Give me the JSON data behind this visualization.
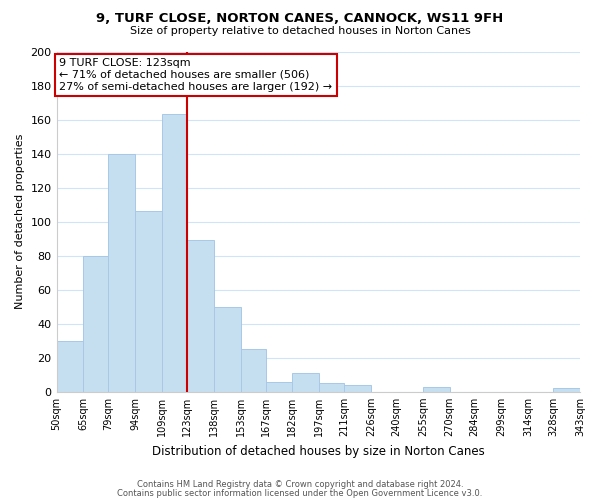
{
  "title": "9, TURF CLOSE, NORTON CANES, CANNOCK, WS11 9FH",
  "subtitle": "Size of property relative to detached houses in Norton Canes",
  "xlabel": "Distribution of detached houses by size in Norton Canes",
  "ylabel": "Number of detached properties",
  "bar_color": "#c6dff0",
  "bar_edge_color": "#a8c8e8",
  "reference_line_x": 123,
  "reference_line_color": "#cc0000",
  "annotation_title": "9 TURF CLOSE: 123sqm",
  "annotation_line1": "← 71% of detached houses are smaller (506)",
  "annotation_line2": "27% of semi-detached houses are larger (192) →",
  "annotation_box_color": "#ffffff",
  "annotation_box_edge_color": "#cc0000",
  "bins": [
    50,
    65,
    79,
    94,
    109,
    123,
    138,
    153,
    167,
    182,
    197,
    211,
    226,
    240,
    255,
    270,
    284,
    299,
    314,
    328,
    343
  ],
  "counts": [
    30,
    80,
    140,
    106,
    163,
    89,
    50,
    25,
    6,
    11,
    5,
    4,
    0,
    0,
    3,
    0,
    0,
    0,
    0,
    2
  ],
  "ylim": [
    0,
    200
  ],
  "yticks": [
    0,
    20,
    40,
    60,
    80,
    100,
    120,
    140,
    160,
    180,
    200
  ],
  "footer_line1": "Contains HM Land Registry data © Crown copyright and database right 2024.",
  "footer_line2": "Contains public sector information licensed under the Open Government Licence v3.0.",
  "background_color": "#ffffff",
  "grid_color": "#d0e4f7"
}
